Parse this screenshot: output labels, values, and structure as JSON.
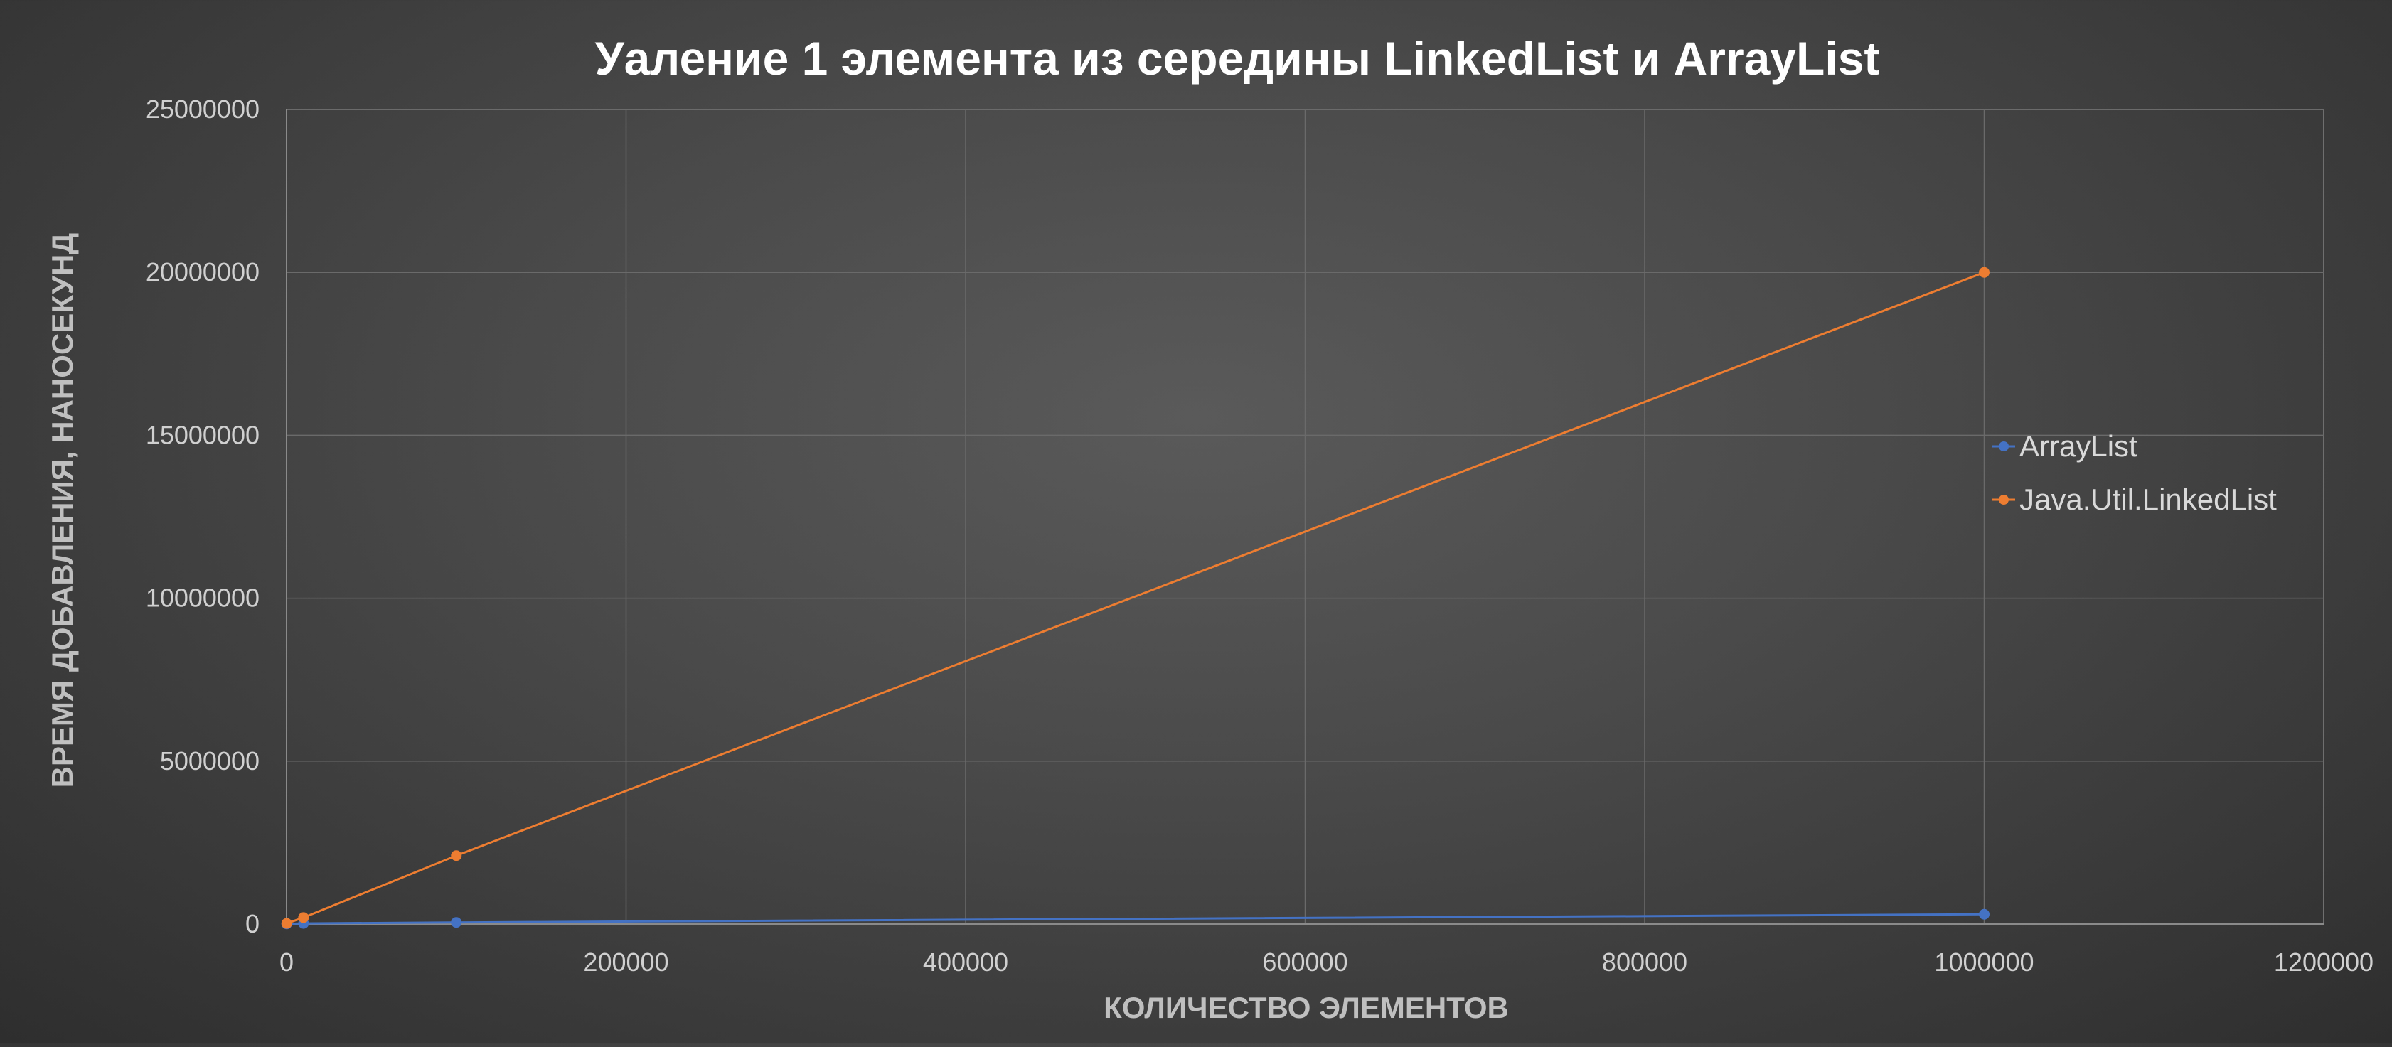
{
  "chart_data": {
    "type": "scatter",
    "title": "Уаление 1 элемента из середины LinkedList и ArrayList",
    "xlabel": "КОЛИЧЕСТВО ЭЛЕМЕНТОВ",
    "ylabel": "ВРЕМЯ ДОБАВЛЕНИЯ, НАНОСЕКУНД",
    "xlim": [
      0,
      1200000
    ],
    "ylim": [
      0,
      25000000
    ],
    "x_ticks": [
      0,
      200000,
      400000,
      600000,
      800000,
      1000000,
      1200000
    ],
    "y_ticks": [
      0,
      5000000,
      10000000,
      15000000,
      20000000,
      25000000
    ],
    "x_tick_labels": [
      "0",
      "200000",
      "400000",
      "600000",
      "800000",
      "1000000",
      "1200000"
    ],
    "y_tick_labels": [
      "0",
      "5000000",
      "10000000",
      "15000000",
      "20000000",
      "25000000"
    ],
    "grid": true,
    "legend_position": "right",
    "series": [
      {
        "name": "ArrayList",
        "color": "#4472C4",
        "x": [
          100,
          10000,
          100000,
          1000000
        ],
        "y": [
          5000,
          20000,
          50000,
          300000
        ]
      },
      {
        "name": "Java.Util.LinkedList",
        "color": "#ED7D31",
        "x": [
          100,
          10000,
          100000,
          1000000
        ],
        "y": [
          20000,
          200000,
          2100000,
          20000000
        ]
      }
    ]
  }
}
